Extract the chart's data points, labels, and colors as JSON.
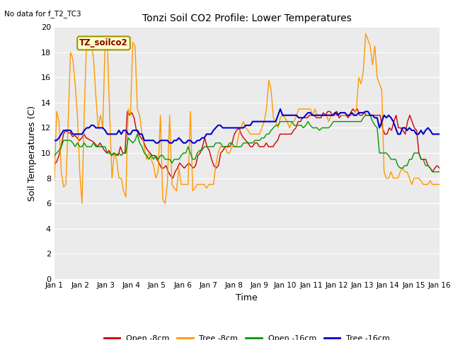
{
  "title": "Tonzi Soil CO2 Profile: Lower Temperatures",
  "subtitle": "No data for f_T2_TC3",
  "xlabel": "Time",
  "ylabel": "Soil Temperatures (C)",
  "ylim": [
    0,
    20
  ],
  "yticks": [
    0,
    2,
    4,
    6,
    8,
    10,
    12,
    14,
    16,
    18,
    20
  ],
  "xtick_labels": [
    "Jan 1",
    "Jan 2",
    "Jan 3",
    "Jan 4",
    "Jan 5",
    "Jan 6",
    "Jan 7",
    "Jan 8",
    "Jan 9",
    "Jan 10",
    "Jan 11",
    "Jan 12",
    "Jan 13",
    "Jan 14",
    "Jan 15",
    "Jan 16"
  ],
  "legend_labels": [
    "Open -8cm",
    "Tree -8cm",
    "Open -16cm",
    "Tree -16cm"
  ],
  "legend_colors": [
    "#cc0000",
    "#ff9900",
    "#009900",
    "#0000cc"
  ],
  "fig_bg": "#ffffff",
  "plot_bg": "#ebebeb",
  "grid_color": "#ffffff",
  "inset_label": "TZ_soilco2",
  "inset_color": "#880000",
  "inset_bg": "#ffffcc",
  "inset_edge": "#999900",
  "open8_data": [
    9.1,
    9.3,
    9.8,
    10.5,
    11.5,
    11.8,
    11.6,
    11.6,
    11.3,
    11.4,
    11.2,
    11.0,
    11.2,
    11.5,
    11.2,
    11.1,
    11.0,
    10.9,
    10.7,
    10.5,
    10.8,
    10.5,
    10.2,
    10.0,
    10.2,
    9.8,
    10.0,
    9.9,
    9.8,
    10.5,
    10.0,
    10.0,
    13.3,
    13.0,
    13.2,
    12.8,
    11.8,
    11.5,
    11.2,
    11.0,
    10.5,
    10.2,
    10.0,
    9.8,
    9.8,
    9.5,
    9.2,
    8.8,
    8.8,
    9.0,
    8.5,
    8.2,
    8.0,
    8.5,
    8.8,
    9.2,
    9.0,
    8.8,
    9.0,
    9.2,
    9.0,
    8.8,
    9.0,
    9.8,
    10.0,
    10.5,
    11.2,
    10.5,
    10.2,
    9.5,
    9.0,
    8.8,
    9.0,
    10.0,
    10.2,
    10.5,
    10.5,
    10.5,
    10.8,
    11.5,
    11.8,
    12.0,
    11.5,
    11.2,
    11.0,
    10.8,
    10.5,
    10.5,
    10.8,
    10.8,
    10.5,
    10.5,
    10.5,
    10.8,
    10.5,
    10.5,
    10.5,
    10.8,
    11.0,
    11.5,
    11.5,
    11.5,
    11.5,
    11.5,
    11.5,
    11.8,
    12.0,
    12.5,
    12.5,
    12.8,
    12.8,
    12.8,
    13.0,
    13.0,
    13.0,
    12.8,
    12.8,
    12.8,
    13.2,
    13.0,
    13.3,
    13.3,
    13.0,
    13.2,
    13.3,
    12.8,
    13.0,
    13.0,
    13.0,
    12.8,
    13.2,
    13.5,
    13.3,
    13.5,
    13.0,
    13.0,
    13.2,
    13.0,
    13.0,
    13.0,
    13.0,
    13.0,
    13.0,
    13.0,
    12.0,
    11.5,
    11.5,
    12.0,
    11.8,
    12.5,
    13.0,
    12.0,
    12.0,
    11.8,
    11.5,
    12.5,
    13.0,
    12.5,
    12.0,
    11.8,
    10.0,
    9.5,
    9.5,
    9.5,
    9.0,
    8.8,
    8.5,
    8.8,
    9.0,
    8.8
  ],
  "tree8_data": [
    7.8,
    13.3,
    12.5,
    8.5,
    7.3,
    7.5,
    12.5,
    18.0,
    17.5,
    15.5,
    13.0,
    8.5,
    6.0,
    13.5,
    19.0,
    19.0,
    18.8,
    17.5,
    14.5,
    12.0,
    13.0,
    12.0,
    18.8,
    18.5,
    13.0,
    8.0,
    10.0,
    9.5,
    8.0,
    8.0,
    7.0,
    6.5,
    13.5,
    13.0,
    18.8,
    18.5,
    13.5,
    13.0,
    11.5,
    10.5,
    9.5,
    10.0,
    9.5,
    9.0,
    8.0,
    8.5,
    13.0,
    6.3,
    6.0,
    7.5,
    13.0,
    7.5,
    7.2,
    7.0,
    8.8,
    7.5,
    7.5,
    7.5,
    7.5,
    13.3,
    7.0,
    7.2,
    7.5,
    7.5,
    7.5,
    7.5,
    7.2,
    7.5,
    7.5,
    7.5,
    9.0,
    10.0,
    10.5,
    10.5,
    10.5,
    10.0,
    10.0,
    10.5,
    10.5,
    10.5,
    11.5,
    12.0,
    12.5,
    12.0,
    11.8,
    11.5,
    11.5,
    11.5,
    11.5,
    11.5,
    12.0,
    12.5,
    13.5,
    15.8,
    15.0,
    12.8,
    12.5,
    12.0,
    12.8,
    13.0,
    12.8,
    12.5,
    12.0,
    12.5,
    12.5,
    13.0,
    13.5,
    13.5,
    13.5,
    13.5,
    13.5,
    13.5,
    13.0,
    13.5,
    13.0,
    13.0,
    13.0,
    13.0,
    13.0,
    12.5,
    13.0,
    13.0,
    13.0,
    13.0,
    13.0,
    13.0,
    13.0,
    13.0,
    13.0,
    13.0,
    13.0,
    13.5,
    16.0,
    15.5,
    16.5,
    19.5,
    19.0,
    18.5,
    17.0,
    18.5,
    16.0,
    15.5,
    15.0,
    8.5,
    8.0,
    8.0,
    8.5,
    8.0,
    8.0,
    8.0,
    8.5,
    8.8,
    8.5,
    8.5,
    8.0,
    7.5,
    8.0,
    8.0,
    8.0,
    7.8,
    7.5,
    7.5,
    7.5,
    7.8,
    7.5,
    7.5,
    7.5,
    7.5
  ],
  "open16_data": [
    9.8,
    10.0,
    10.2,
    10.5,
    11.0,
    11.0,
    11.0,
    11.0,
    10.8,
    10.5,
    10.8,
    10.5,
    10.5,
    10.8,
    10.5,
    10.5,
    10.5,
    10.8,
    10.5,
    10.5,
    10.5,
    10.5,
    10.5,
    10.0,
    10.0,
    9.8,
    10.0,
    9.8,
    10.0,
    9.8,
    10.0,
    10.0,
    11.2,
    11.0,
    10.8,
    11.0,
    11.5,
    10.8,
    10.5,
    10.0,
    9.8,
    9.5,
    9.8,
    9.5,
    9.8,
    9.5,
    9.8,
    9.8,
    9.5,
    9.5,
    9.5,
    9.2,
    9.5,
    9.5,
    9.5,
    9.8,
    10.0,
    10.0,
    10.5,
    10.0,
    9.5,
    9.5,
    10.0,
    10.2,
    10.2,
    10.5,
    10.5,
    10.5,
    10.5,
    10.5,
    10.8,
    10.8,
    10.8,
    10.5,
    10.5,
    10.5,
    10.8,
    10.8,
    10.5,
    10.5,
    10.5,
    10.5,
    10.8,
    10.8,
    10.8,
    10.8,
    10.8,
    11.0,
    11.0,
    11.0,
    11.2,
    11.2,
    11.5,
    11.5,
    11.8,
    12.0,
    12.2,
    12.2,
    12.5,
    12.5,
    12.5,
    12.5,
    12.5,
    12.5,
    12.2,
    12.2,
    12.2,
    12.2,
    12.0,
    12.2,
    12.5,
    12.2,
    12.0,
    12.0,
    12.0,
    11.8,
    12.0,
    12.0,
    12.0,
    12.0,
    12.2,
    12.5,
    12.5,
    12.5,
    12.5,
    12.5,
    12.5,
    12.5,
    12.5,
    12.5,
    12.5,
    12.5,
    12.5,
    12.5,
    12.8,
    13.0,
    13.0,
    13.0,
    12.5,
    12.2,
    12.0,
    10.0,
    10.0,
    10.0,
    10.0,
    9.8,
    9.5,
    9.5,
    9.5,
    9.0,
    8.8,
    8.8,
    9.0,
    9.0,
    9.5,
    9.5,
    10.0,
    10.0,
    10.0,
    9.5,
    9.5,
    9.0,
    9.0,
    8.8,
    8.5,
    8.5,
    8.5,
    8.5
  ],
  "tree16_data": [
    11.0,
    11.0,
    11.2,
    11.5,
    11.8,
    11.8,
    11.8,
    11.8,
    11.5,
    11.5,
    11.5,
    11.5,
    11.5,
    11.8,
    12.0,
    12.0,
    12.2,
    12.2,
    12.0,
    12.0,
    12.0,
    12.0,
    11.8,
    11.5,
    11.5,
    11.5,
    11.5,
    11.5,
    11.8,
    11.5,
    11.8,
    11.8,
    11.5,
    11.5,
    11.8,
    11.8,
    11.8,
    11.5,
    11.5,
    11.0,
    11.0,
    11.0,
    11.0,
    11.0,
    10.8,
    10.8,
    11.0,
    11.0,
    11.0,
    11.0,
    10.8,
    10.8,
    11.0,
    11.0,
    11.2,
    11.0,
    10.8,
    10.8,
    11.0,
    11.0,
    10.8,
    10.8,
    11.0,
    11.0,
    11.2,
    11.2,
    11.5,
    11.5,
    11.5,
    11.8,
    12.0,
    12.2,
    12.2,
    12.0,
    12.0,
    12.0,
    12.0,
    12.0,
    12.0,
    12.0,
    12.0,
    12.0,
    12.0,
    12.2,
    12.2,
    12.2,
    12.5,
    12.5,
    12.5,
    12.5,
    12.5,
    12.5,
    12.5,
    12.5,
    12.5,
    12.5,
    12.5,
    13.0,
    13.5,
    13.0,
    13.0,
    13.0,
    13.0,
    13.0,
    13.0,
    13.0,
    12.8,
    12.8,
    12.8,
    13.0,
    13.2,
    13.2,
    13.0,
    13.0,
    13.0,
    13.0,
    13.0,
    13.0,
    13.0,
    13.0,
    13.0,
    13.0,
    13.2,
    13.0,
    13.2,
    13.2,
    13.2,
    13.0,
    13.0,
    13.2,
    13.0,
    13.0,
    13.2,
    13.2,
    13.2,
    13.3,
    13.3,
    13.0,
    13.0,
    12.8,
    12.8,
    12.0,
    12.5,
    13.0,
    12.8,
    13.0,
    12.8,
    12.5,
    12.0,
    11.5,
    11.5,
    12.0,
    12.0,
    11.8,
    12.0,
    11.8,
    11.8,
    11.5,
    11.5,
    11.8,
    11.5,
    11.8,
    12.0,
    11.8,
    11.5,
    11.5,
    11.5,
    11.5
  ]
}
